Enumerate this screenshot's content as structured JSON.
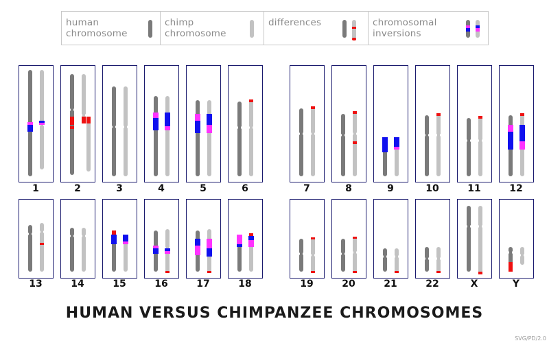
{
  "colors": {
    "human": "#7a7a7a",
    "chimp": "#c2c2c2",
    "difference": "#ee1111",
    "inversion_human": "#1010ee",
    "inversion_chimp": "#ff33ff",
    "frame": "#1a1a6e"
  },
  "legend": [
    {
      "id": "human",
      "text": "human\nchromosome"
    },
    {
      "id": "chimp",
      "text": "chimp\nchromosome"
    },
    {
      "id": "differences",
      "text": "differences"
    },
    {
      "id": "inversions",
      "text": "chromosomal\ninversions"
    }
  ],
  "chromosomes": [
    {
      "label": "1"
    },
    {
      "label": "2"
    },
    {
      "label": "3"
    },
    {
      "label": "4"
    },
    {
      "label": "5"
    },
    {
      "label": "6"
    },
    {
      "label": "7"
    },
    {
      "label": "8"
    },
    {
      "label": "9"
    },
    {
      "label": "10"
    },
    {
      "label": "11"
    },
    {
      "label": "12"
    },
    {
      "label": "13"
    },
    {
      "label": "14"
    },
    {
      "label": "15"
    },
    {
      "label": "16"
    },
    {
      "label": "17"
    },
    {
      "label": "18"
    },
    {
      "label": "19"
    },
    {
      "label": "20"
    },
    {
      "label": "21"
    },
    {
      "label": "22"
    },
    {
      "label": "X"
    },
    {
      "label": "Y"
    }
  ],
  "title": "HUMAN VERSUS CHIMPANZEE CHROMOSOMES",
  "credit": "SVG/PD/2.0"
}
